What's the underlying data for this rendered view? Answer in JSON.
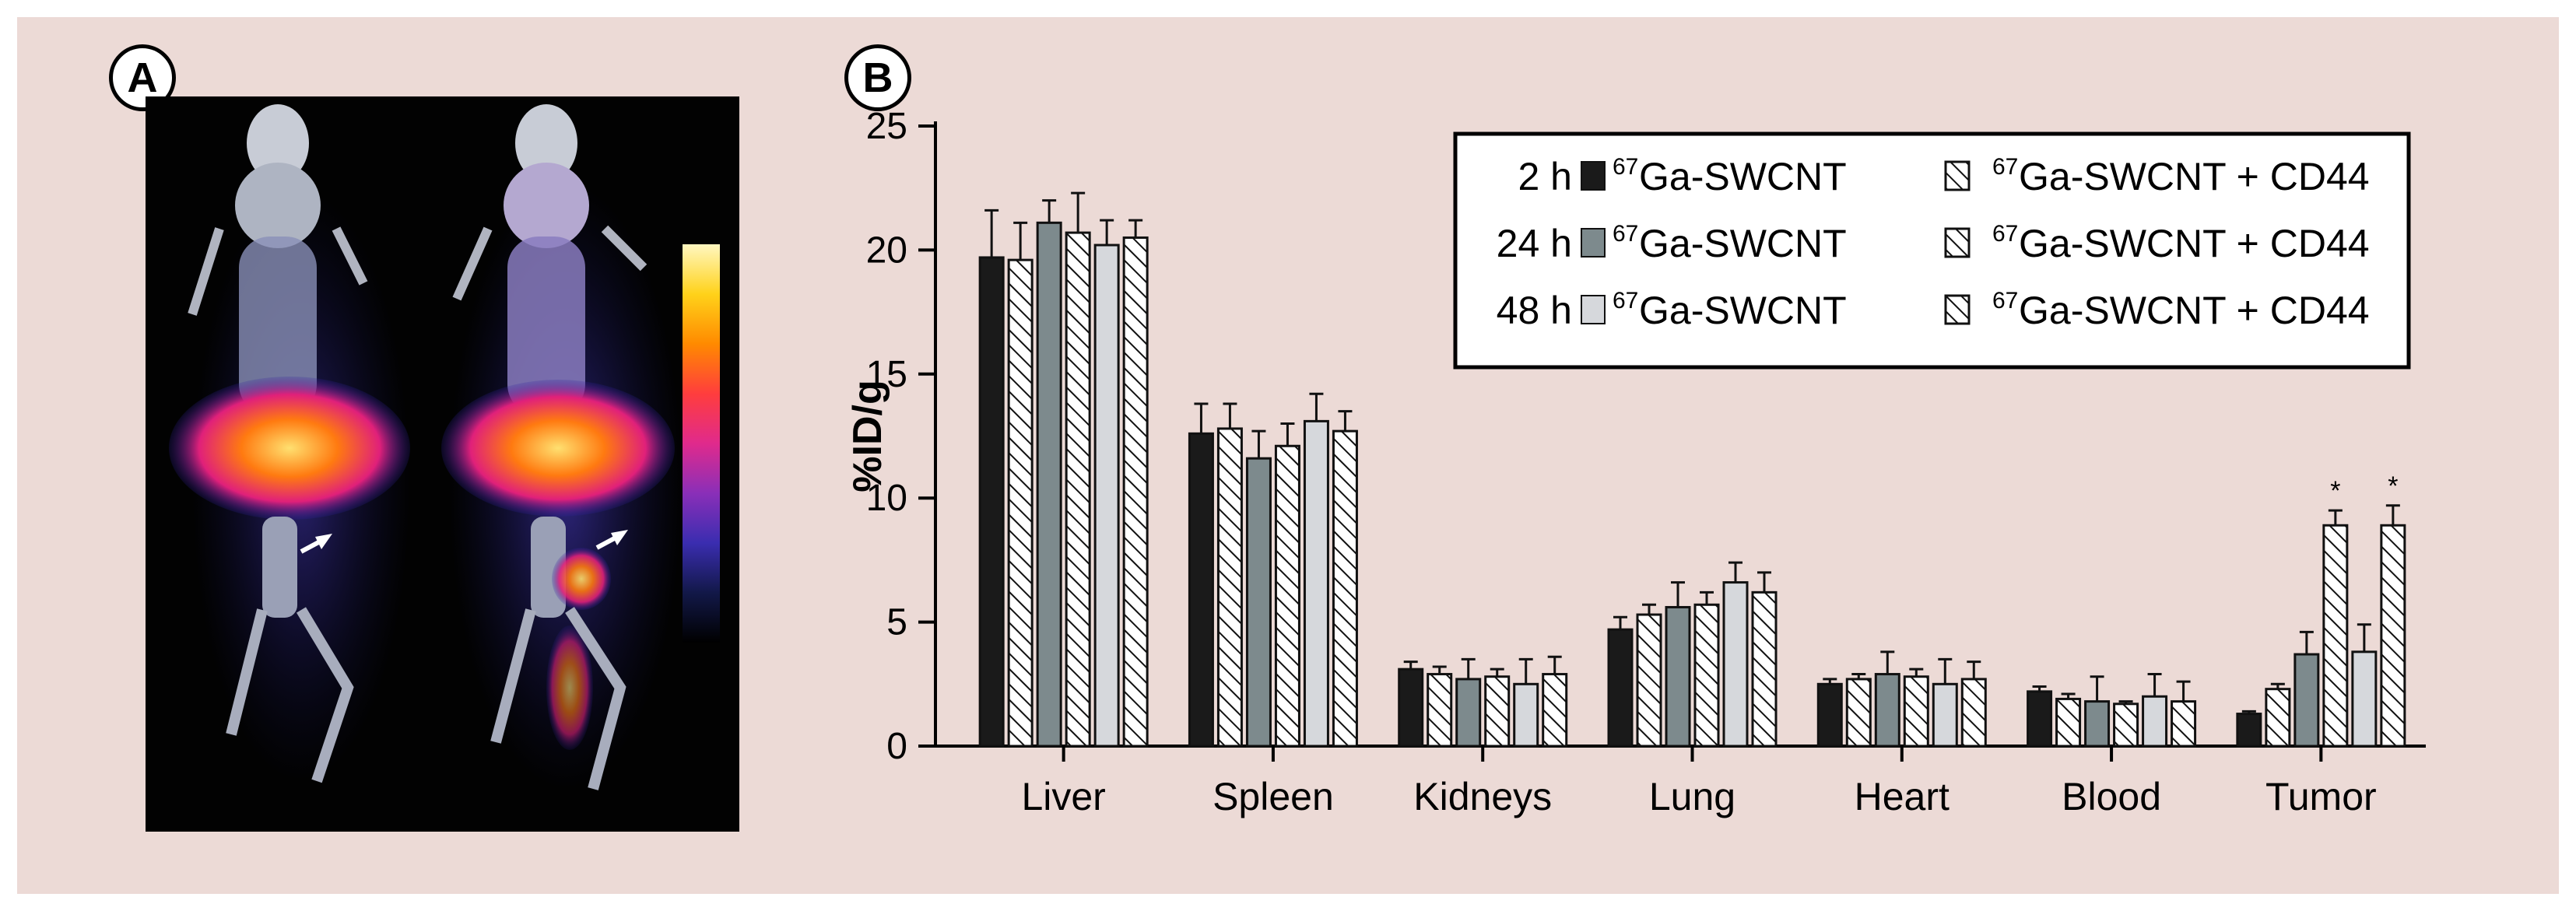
{
  "panel_labels": {
    "a": "A",
    "b": "B"
  },
  "imaging": {
    "description_name": "spect-ct-mouse-images",
    "colorbar_colors": [
      "#fff7c0",
      "#ffd21a",
      "#ff8a00",
      "#ff3d3d",
      "#e02a8c",
      "#8a2fb8",
      "#3a2db0",
      "#121848",
      "#000000"
    ]
  },
  "colors": {
    "figure_bg": "#ecdad6",
    "series_2h": "#1a1a1a",
    "series_24h": "#7d8a8d",
    "series_48h": "#d6d8dc",
    "hatched": "#ffffff"
  },
  "chart_data": {
    "type": "bar",
    "title": "",
    "xlabel": "",
    "ylabel": "%ID/g",
    "ylim": [
      0,
      25
    ],
    "yticks": [
      "0",
      "5",
      "10",
      "15",
      "20",
      "25"
    ],
    "categories": [
      "Liver",
      "Spleen",
      "Kidneys",
      "Lung",
      "Heart",
      "Blood",
      "Tumor"
    ],
    "legend": {
      "rows": [
        {
          "time": "2 h",
          "solid_label": "Ga-SWCNT",
          "hatched_label": "Ga-SWCNT + CD44"
        },
        {
          "time": "24 h",
          "solid_label": "Ga-SWCNT",
          "hatched_label": "Ga-SWCNT + CD44"
        },
        {
          "time": "48 h",
          "solid_label": "Ga-SWCNT",
          "hatched_label": "Ga-SWCNT + CD44"
        }
      ],
      "superscript": "67",
      "position": "top-right"
    },
    "series": [
      {
        "name": "2 h 67Ga-SWCNT",
        "fill": "#1a1a1a",
        "hatched": false,
        "values": [
          19.7,
          12.6,
          3.1,
          4.7,
          2.5,
          2.2,
          1.3
        ],
        "errors": [
          1.9,
          1.2,
          0.3,
          0.5,
          0.2,
          0.2,
          0.1
        ]
      },
      {
        "name": "2 h 67Ga-SWCNT + CD44",
        "fill": "#1a1a1a",
        "hatched": true,
        "values": [
          19.6,
          12.8,
          2.9,
          5.3,
          2.7,
          1.9,
          2.3
        ],
        "errors": [
          1.5,
          1.0,
          0.3,
          0.4,
          0.2,
          0.2,
          0.2
        ]
      },
      {
        "name": "24 h 67Ga-SWCNT",
        "fill": "#7d8a8d",
        "hatched": false,
        "values": [
          21.1,
          11.6,
          2.7,
          5.6,
          2.9,
          1.8,
          3.7
        ],
        "errors": [
          0.9,
          1.1,
          0.8,
          1.0,
          0.9,
          1.0,
          0.9
        ]
      },
      {
        "name": "24 h 67Ga-SWCNT + CD44",
        "fill": "#7d8a8d",
        "hatched": true,
        "values": [
          20.7,
          12.1,
          2.8,
          5.7,
          2.8,
          1.7,
          8.9
        ],
        "errors": [
          1.6,
          0.9,
          0.3,
          0.5,
          0.3,
          0.1,
          0.6
        ]
      },
      {
        "name": "48 h 67Ga-SWCNT",
        "fill": "#d6d8dc",
        "hatched": false,
        "values": [
          20.2,
          13.1,
          2.5,
          6.6,
          2.5,
          2.0,
          3.8
        ],
        "errors": [
          1.0,
          1.1,
          1.0,
          0.8,
          1.0,
          0.9,
          1.1
        ]
      },
      {
        "name": "48 h 67Ga-SWCNT + CD44",
        "fill": "#d6d8dc",
        "hatched": true,
        "values": [
          20.5,
          12.7,
          2.9,
          6.2,
          2.7,
          1.8,
          8.9
        ],
        "errors": [
          0.7,
          0.8,
          0.7,
          0.8,
          0.7,
          0.8,
          0.8
        ]
      }
    ],
    "annotations": [
      {
        "category": "Tumor",
        "series": 3,
        "text": "*"
      },
      {
        "category": "Tumor",
        "series": 5,
        "text": "*"
      }
    ]
  }
}
